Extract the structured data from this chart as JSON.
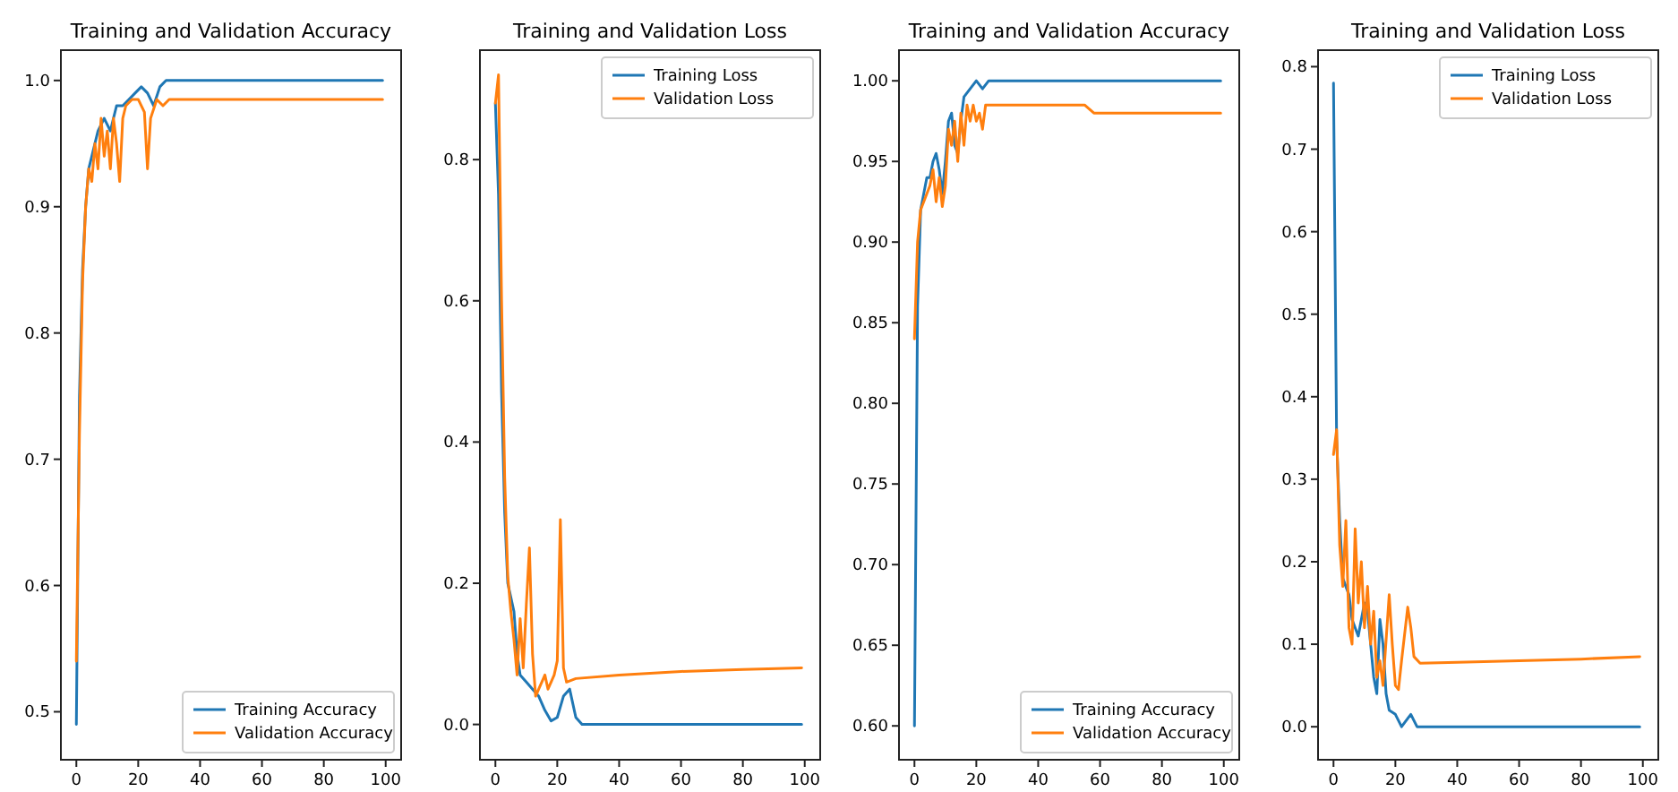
{
  "chart_data": [
    {
      "type": "line",
      "title": "Training and Validation Accuracy",
      "xlim": [
        -5,
        105
      ],
      "ylim": [
        0.462,
        1.024
      ],
      "xticks": [
        0,
        20,
        40,
        60,
        80,
        100
      ],
      "yticks": [
        {
          "value": 0.5,
          "label": "0.5"
        },
        {
          "value": 0.6,
          "label": "0.6"
        },
        {
          "value": 0.7,
          "label": "0.7"
        },
        {
          "value": 0.8,
          "label": "0.8"
        },
        {
          "value": 0.9,
          "label": "0.9"
        },
        {
          "value": 1,
          "label": "1.0"
        }
      ],
      "grid": false,
      "legend": "bottom right",
      "series": [
        {
          "name": "Training Accuracy",
          "color": "#1f77b4",
          "x": [
            0,
            1,
            2,
            3,
            4,
            5,
            7,
            9,
            11,
            13,
            15,
            17,
            19,
            21,
            23,
            25,
            27,
            29,
            99
          ],
          "values": [
            0.49,
            0.75,
            0.85,
            0.9,
            0.93,
            0.94,
            0.96,
            0.97,
            0.96,
            0.98,
            0.98,
            0.985,
            0.99,
            0.995,
            0.99,
            0.98,
            0.995,
            1.0,
            1.0
          ]
        },
        {
          "name": "Validation Accuracy",
          "color": "#ff7f0e",
          "x": [
            0,
            1,
            2,
            3,
            4,
            5,
            6,
            7,
            8,
            9,
            10,
            11,
            12,
            13,
            14,
            15,
            16,
            18,
            20,
            22,
            23,
            24,
            26,
            28,
            30,
            99
          ],
          "values": [
            0.54,
            0.72,
            0.84,
            0.9,
            0.93,
            0.92,
            0.95,
            0.93,
            0.97,
            0.94,
            0.96,
            0.93,
            0.97,
            0.95,
            0.92,
            0.97,
            0.98,
            0.985,
            0.985,
            0.975,
            0.93,
            0.97,
            0.985,
            0.98,
            0.985,
            0.985
          ]
        }
      ]
    },
    {
      "type": "line",
      "title": "Training and Validation Loss",
      "xlim": [
        -5,
        105
      ],
      "ylim": [
        -0.05,
        0.955
      ],
      "xticks": [
        0,
        20,
        40,
        60,
        80,
        100
      ],
      "yticks": [
        {
          "value": 0,
          "label": "0.0"
        },
        {
          "value": 0.2,
          "label": "0.2"
        },
        {
          "value": 0.4,
          "label": "0.4"
        },
        {
          "value": 0.6,
          "label": "0.6"
        },
        {
          "value": 0.8,
          "label": "0.8"
        }
      ],
      "grid": false,
      "legend": "top right",
      "series": [
        {
          "name": "Training Loss",
          "color": "#1f77b4",
          "x": [
            0,
            1,
            2,
            3,
            4,
            5,
            6,
            7,
            8,
            10,
            12,
            14,
            16,
            18,
            20,
            22,
            24,
            26,
            28,
            99
          ],
          "values": [
            0.88,
            0.75,
            0.47,
            0.3,
            0.2,
            0.18,
            0.16,
            0.1,
            0.07,
            0.06,
            0.05,
            0.04,
            0.02,
            0.005,
            0.01,
            0.04,
            0.05,
            0.01,
            0.0,
            0.0
          ]
        },
        {
          "name": "Validation Loss",
          "color": "#ff7f0e",
          "x": [
            0,
            1,
            2,
            3,
            4,
            5,
            6,
            7,
            8,
            9,
            10,
            11,
            12,
            13,
            14,
            15,
            16,
            17,
            18,
            19,
            20,
            21,
            22,
            23,
            26,
            40,
            60,
            80,
            99
          ],
          "values": [
            0.88,
            0.92,
            0.6,
            0.35,
            0.21,
            0.16,
            0.12,
            0.07,
            0.15,
            0.08,
            0.17,
            0.25,
            0.1,
            0.04,
            0.05,
            0.06,
            0.07,
            0.05,
            0.06,
            0.07,
            0.09,
            0.29,
            0.08,
            0.06,
            0.065,
            0.07,
            0.075,
            0.078,
            0.08
          ]
        }
      ]
    },
    {
      "type": "line",
      "title": "Training and Validation Accuracy",
      "xlim": [
        -5,
        105
      ],
      "ylim": [
        0.579,
        1.019
      ],
      "xticks": [
        0,
        20,
        40,
        60,
        80,
        100
      ],
      "yticks": [
        {
          "value": 0.6,
          "label": "0.60"
        },
        {
          "value": 0.65,
          "label": "0.65"
        },
        {
          "value": 0.7,
          "label": "0.70"
        },
        {
          "value": 0.75,
          "label": "0.75"
        },
        {
          "value": 0.8,
          "label": "0.80"
        },
        {
          "value": 0.85,
          "label": "0.85"
        },
        {
          "value": 0.9,
          "label": "0.90"
        },
        {
          "value": 0.95,
          "label": "0.95"
        },
        {
          "value": 1,
          "label": "1.00"
        }
      ],
      "grid": false,
      "legend": "bottom right",
      "series": [
        {
          "name": "Training Accuracy",
          "color": "#1f77b4",
          "x": [
            0,
            1,
            2,
            3,
            4,
            5,
            6,
            7,
            8,
            9,
            10,
            11,
            12,
            13,
            14,
            15,
            16,
            18,
            20,
            22,
            24,
            99
          ],
          "values": [
            0.6,
            0.86,
            0.92,
            0.93,
            0.94,
            0.94,
            0.95,
            0.955,
            0.945,
            0.93,
            0.95,
            0.975,
            0.98,
            0.96,
            0.955,
            0.975,
            0.99,
            0.995,
            1.0,
            0.995,
            1.0,
            1.0
          ]
        },
        {
          "name": "Validation Accuracy",
          "color": "#ff7f0e",
          "x": [
            0,
            1,
            2,
            3,
            4,
            5,
            6,
            7,
            8,
            9,
            10,
            11,
            12,
            13,
            14,
            15,
            16,
            17,
            18,
            19,
            20,
            21,
            22,
            23,
            55,
            58,
            99
          ],
          "values": [
            0.84,
            0.9,
            0.92,
            0.925,
            0.93,
            0.935,
            0.945,
            0.925,
            0.94,
            0.922,
            0.935,
            0.97,
            0.96,
            0.975,
            0.95,
            0.98,
            0.96,
            0.985,
            0.975,
            0.985,
            0.975,
            0.98,
            0.97,
            0.985,
            0.985,
            0.98,
            0.98
          ]
        }
      ]
    },
    {
      "type": "line",
      "title": "Training and Validation Loss",
      "xlim": [
        -5,
        105
      ],
      "ylim": [
        -0.04,
        0.82
      ],
      "xticks": [
        0,
        20,
        40,
        60,
        80,
        100
      ],
      "yticks": [
        {
          "value": 0,
          "label": "0.0"
        },
        {
          "value": 0.1,
          "label": "0.1"
        },
        {
          "value": 0.2,
          "label": "0.2"
        },
        {
          "value": 0.3,
          "label": "0.3"
        },
        {
          "value": 0.4,
          "label": "0.4"
        },
        {
          "value": 0.5,
          "label": "0.5"
        },
        {
          "value": 0.6,
          "label": "0.6"
        },
        {
          "value": 0.7,
          "label": "0.7"
        },
        {
          "value": 0.8,
          "label": "0.8"
        }
      ],
      "grid": false,
      "legend": "top right",
      "series": [
        {
          "name": "Training Loss",
          "color": "#1f77b4",
          "x": [
            0,
            1,
            2,
            3,
            4,
            5,
            6,
            7,
            8,
            9,
            10,
            11,
            12,
            13,
            14,
            15,
            16,
            17,
            18,
            20,
            22,
            24,
            25,
            27,
            99
          ],
          "values": [
            0.78,
            0.35,
            0.25,
            0.18,
            0.17,
            0.16,
            0.13,
            0.12,
            0.11,
            0.13,
            0.15,
            0.14,
            0.1,
            0.06,
            0.04,
            0.13,
            0.1,
            0.04,
            0.02,
            0.015,
            0.0,
            0.01,
            0.015,
            0.0,
            0.0
          ]
        },
        {
          "name": "Validation Loss",
          "color": "#ff7f0e",
          "x": [
            0,
            1,
            2,
            3,
            4,
            5,
            6,
            7,
            8,
            9,
            10,
            11,
            12,
            13,
            14,
            15,
            16,
            18,
            19,
            20,
            21,
            22,
            24,
            25,
            26,
            28,
            40,
            60,
            80,
            99
          ],
          "values": [
            0.33,
            0.36,
            0.22,
            0.17,
            0.25,
            0.12,
            0.1,
            0.24,
            0.15,
            0.2,
            0.12,
            0.17,
            0.1,
            0.14,
            0.06,
            0.08,
            0.05,
            0.16,
            0.1,
            0.05,
            0.045,
            0.08,
            0.145,
            0.12,
            0.085,
            0.077,
            0.078,
            0.08,
            0.082,
            0.085
          ]
        }
      ]
    }
  ]
}
